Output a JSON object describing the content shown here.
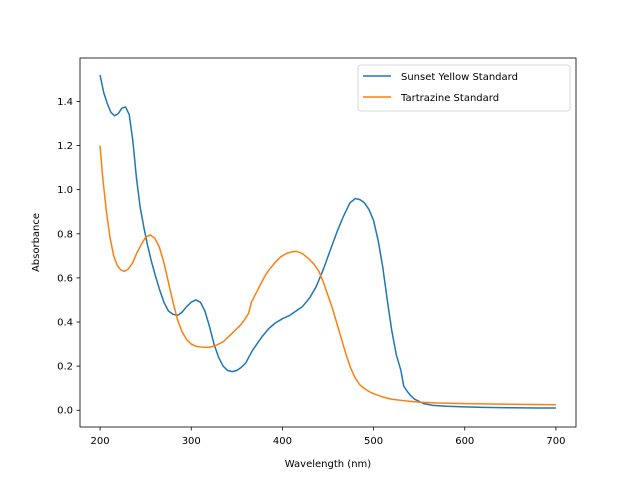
{
  "chart_data": {
    "type": "line",
    "title": "",
    "xlabel": "Wavelength (nm)",
    "ylabel": "Absorbance",
    "xlim": [
      178,
      722
    ],
    "ylim": [
      -0.076,
      1.597
    ],
    "xticks": [
      200,
      300,
      400,
      500,
      600,
      700
    ],
    "yticks": [
      0.0,
      0.2,
      0.4,
      0.6,
      0.8,
      1.0,
      1.2,
      1.4
    ],
    "xtick_labels": [
      "200",
      "300",
      "400",
      "500",
      "600",
      "700"
    ],
    "ytick_labels": [
      "0.0",
      "0.2",
      "0.4",
      "0.6",
      "0.8",
      "1.0",
      "1.2",
      "1.4"
    ],
    "grid": false,
    "legend_position": "top-right",
    "series": [
      {
        "name": "Sunset Yellow Standard",
        "color": "#1f77b4",
        "points": [
          [
            200,
            1.52
          ],
          [
            204,
            1.44
          ],
          [
            208,
            1.39
          ],
          [
            212,
            1.35
          ],
          [
            216,
            1.335
          ],
          [
            220,
            1.345
          ],
          [
            224,
            1.37
          ],
          [
            228,
            1.375
          ],
          [
            232,
            1.34
          ],
          [
            236,
            1.22
          ],
          [
            240,
            1.05
          ],
          [
            244,
            0.92
          ],
          [
            248,
            0.83
          ],
          [
            252,
            0.75
          ],
          [
            256,
            0.68
          ],
          [
            260,
            0.62
          ],
          [
            265,
            0.55
          ],
          [
            270,
            0.49
          ],
          [
            275,
            0.45
          ],
          [
            280,
            0.435
          ],
          [
            285,
            0.43
          ],
          [
            290,
            0.445
          ],
          [
            295,
            0.47
          ],
          [
            300,
            0.49
          ],
          [
            305,
            0.5
          ],
          [
            310,
            0.49
          ],
          [
            315,
            0.45
          ],
          [
            320,
            0.38
          ],
          [
            325,
            0.3
          ],
          [
            330,
            0.24
          ],
          [
            335,
            0.2
          ],
          [
            340,
            0.18
          ],
          [
            345,
            0.175
          ],
          [
            350,
            0.18
          ],
          [
            355,
            0.195
          ],
          [
            360,
            0.215
          ],
          [
            363,
            0.24
          ],
          [
            367,
            0.27
          ],
          [
            372,
            0.3
          ],
          [
            378,
            0.335
          ],
          [
            385,
            0.37
          ],
          [
            392,
            0.395
          ],
          [
            400,
            0.415
          ],
          [
            408,
            0.43
          ],
          [
            415,
            0.45
          ],
          [
            422,
            0.47
          ],
          [
            430,
            0.51
          ],
          [
            437,
            0.56
          ],
          [
            445,
            0.64
          ],
          [
            452,
            0.72
          ],
          [
            460,
            0.81
          ],
          [
            467,
            0.88
          ],
          [
            474,
            0.94
          ],
          [
            480,
            0.96
          ],
          [
            485,
            0.955
          ],
          [
            490,
            0.94
          ],
          [
            495,
            0.91
          ],
          [
            500,
            0.86
          ],
          [
            505,
            0.77
          ],
          [
            510,
            0.65
          ],
          [
            515,
            0.5
          ],
          [
            520,
            0.36
          ],
          [
            525,
            0.25
          ],
          [
            530,
            0.18
          ],
          [
            533,
            0.11
          ],
          [
            537,
            0.085
          ],
          [
            541,
            0.065
          ],
          [
            545,
            0.05
          ],
          [
            550,
            0.04
          ],
          [
            555,
            0.03
          ],
          [
            565,
            0.022
          ],
          [
            580,
            0.018
          ],
          [
            600,
            0.015
          ],
          [
            620,
            0.013
          ],
          [
            650,
            0.011
          ],
          [
            680,
            0.01
          ],
          [
            700,
            0.01
          ]
        ]
      },
      {
        "name": "Tartrazine Standard",
        "color": "#ff7f0e",
        "points": [
          [
            200,
            1.2
          ],
          [
            203,
            1.05
          ],
          [
            207,
            0.9
          ],
          [
            211,
            0.78
          ],
          [
            215,
            0.7
          ],
          [
            219,
            0.655
          ],
          [
            223,
            0.635
          ],
          [
            227,
            0.63
          ],
          [
            231,
            0.64
          ],
          [
            236,
            0.67
          ],
          [
            240,
            0.71
          ],
          [
            245,
            0.75
          ],
          [
            250,
            0.785
          ],
          [
            255,
            0.795
          ],
          [
            260,
            0.78
          ],
          [
            265,
            0.74
          ],
          [
            270,
            0.67
          ],
          [
            275,
            0.58
          ],
          [
            280,
            0.49
          ],
          [
            285,
            0.41
          ],
          [
            290,
            0.355
          ],
          [
            295,
            0.32
          ],
          [
            300,
            0.3
          ],
          [
            305,
            0.29
          ],
          [
            310,
            0.287
          ],
          [
            315,
            0.285
          ],
          [
            320,
            0.286
          ],
          [
            325,
            0.29
          ],
          [
            330,
            0.3
          ],
          [
            335,
            0.31
          ],
          [
            340,
            0.33
          ],
          [
            345,
            0.35
          ],
          [
            350,
            0.37
          ],
          [
            355,
            0.39
          ],
          [
            360,
            0.42
          ],
          [
            363,
            0.44
          ],
          [
            366,
            0.49
          ],
          [
            371,
            0.53
          ],
          [
            376,
            0.57
          ],
          [
            381,
            0.61
          ],
          [
            386,
            0.64
          ],
          [
            392,
            0.67
          ],
          [
            398,
            0.695
          ],
          [
            404,
            0.71
          ],
          [
            410,
            0.718
          ],
          [
            416,
            0.72
          ],
          [
            422,
            0.71
          ],
          [
            428,
            0.69
          ],
          [
            434,
            0.665
          ],
          [
            440,
            0.63
          ],
          [
            445,
            0.58
          ],
          [
            450,
            0.52
          ],
          [
            455,
            0.46
          ],
          [
            460,
            0.39
          ],
          [
            465,
            0.32
          ],
          [
            470,
            0.25
          ],
          [
            475,
            0.19
          ],
          [
            480,
            0.145
          ],
          [
            485,
            0.115
          ],
          [
            490,
            0.098
          ],
          [
            495,
            0.085
          ],
          [
            500,
            0.075
          ],
          [
            510,
            0.06
          ],
          [
            520,
            0.05
          ],
          [
            530,
            0.045
          ],
          [
            540,
            0.04
          ],
          [
            550,
            0.037
          ],
          [
            570,
            0.033
          ],
          [
            600,
            0.03
          ],
          [
            650,
            0.027
          ],
          [
            700,
            0.025
          ]
        ]
      }
    ]
  }
}
